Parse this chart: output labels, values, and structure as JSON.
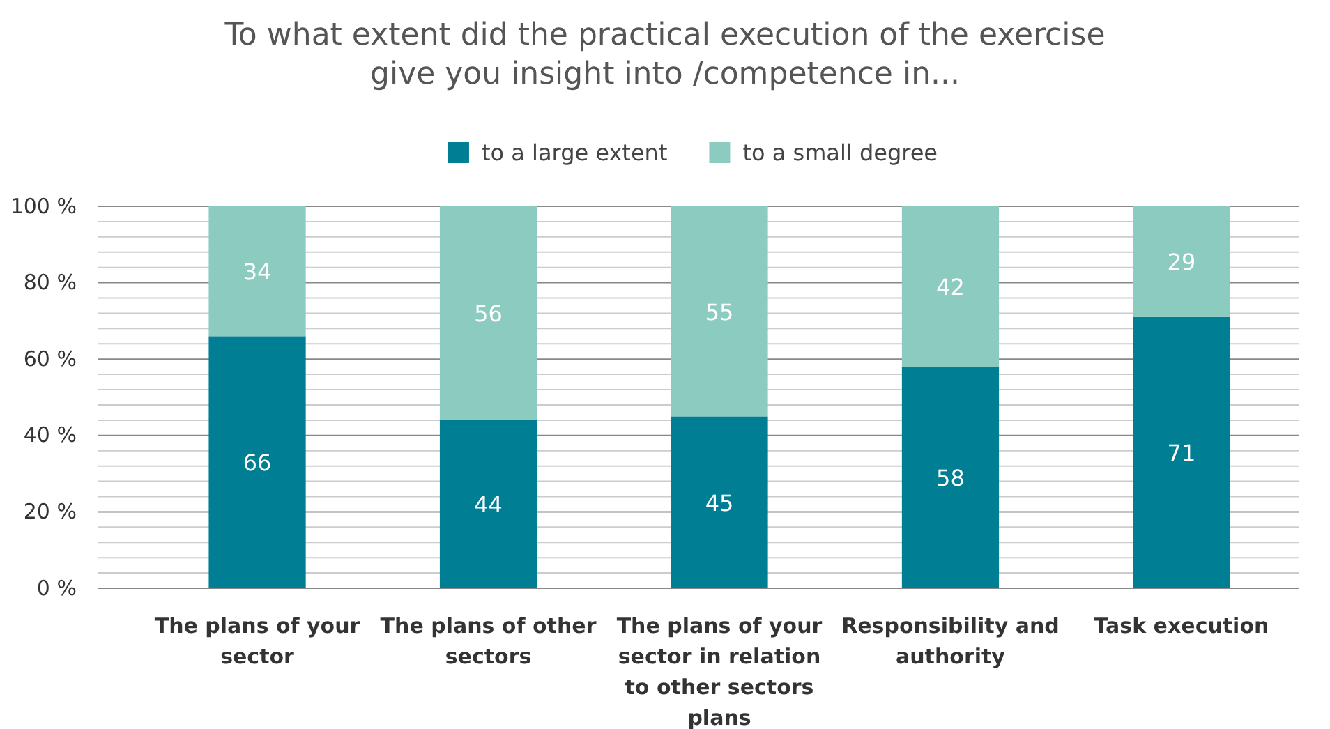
{
  "chart_data": {
    "type": "bar",
    "stacked": true,
    "title": "To what extent did the practical execution of the exercise give you insight into /competence in...",
    "categories": [
      "The plans of your sector",
      "The plans of other sectors",
      "The plans of your sector in relation to other sectors plans",
      "Responsibility and authority",
      "Task execution"
    ],
    "series": [
      {
        "name": "to a large extent",
        "color": "#007f94",
        "values": [
          66,
          44,
          45,
          58,
          71
        ]
      },
      {
        "name": "to a small degree",
        "color": "#8ccbc0",
        "values": [
          34,
          56,
          55,
          42,
          29
        ]
      }
    ],
    "ylim": [
      0,
      100
    ],
    "yticks": [
      {
        "value": 0,
        "label": "0 %"
      },
      {
        "value": 4,
        "label": null
      },
      {
        "value": 8,
        "label": null
      },
      {
        "value": 12,
        "label": null
      },
      {
        "value": 16,
        "label": null
      },
      {
        "value": 20,
        "label": "20 %"
      },
      {
        "value": 24,
        "label": null
      },
      {
        "value": 28,
        "label": null
      },
      {
        "value": 32,
        "label": null
      },
      {
        "value": 36,
        "label": null
      },
      {
        "value": 40,
        "label": "40 %"
      },
      {
        "value": 44,
        "label": null
      },
      {
        "value": 48,
        "label": null
      },
      {
        "value": 52,
        "label": null
      },
      {
        "value": 56,
        "label": null
      },
      {
        "value": 60,
        "label": "60 %"
      },
      {
        "value": 64,
        "label": null
      },
      {
        "value": 68,
        "label": null
      },
      {
        "value": 72,
        "label": null
      },
      {
        "value": 76,
        "label": null
      },
      {
        "value": 80,
        "label": "80 %"
      },
      {
        "value": 84,
        "label": null
      },
      {
        "value": 88,
        "label": null
      },
      {
        "value": 92,
        "label": null
      },
      {
        "value": 96,
        "label": null
      },
      {
        "value": 100,
        "label": "100 %"
      }
    ],
    "grid": "y",
    "legend": "top",
    "data_labels": true
  }
}
